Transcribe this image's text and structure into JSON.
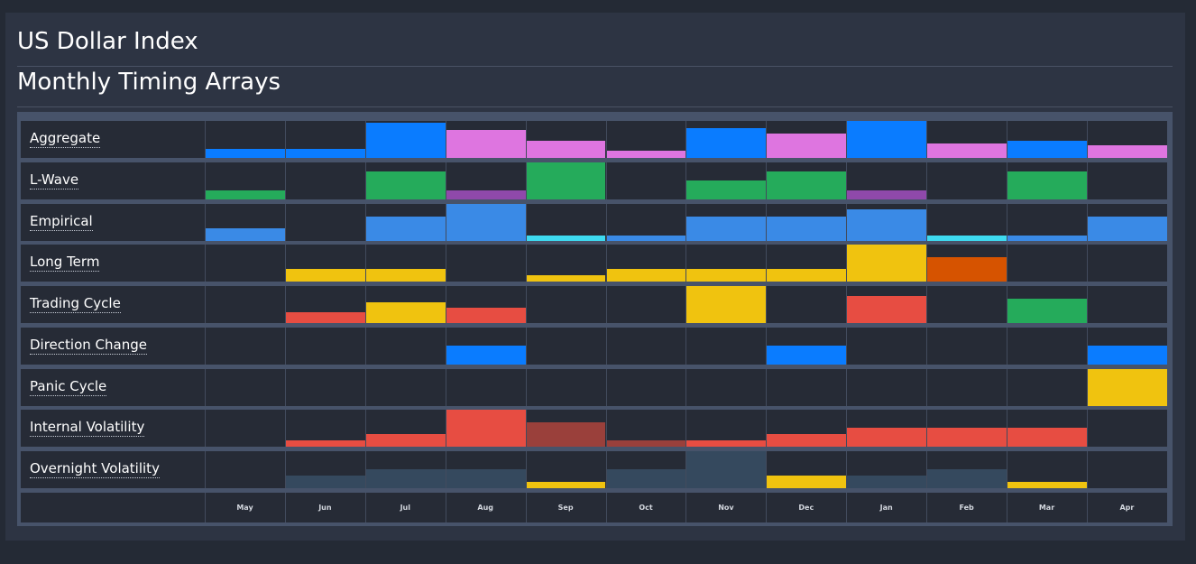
{
  "title": "US Dollar Index",
  "subtitle": "Monthly Timing Arrays",
  "colors": {
    "blue": "#0a7cff",
    "pink": "#de75e0",
    "green": "#25ab5b",
    "purple": "#8f49aa",
    "lightblue": "#3a8ae6",
    "cyan": "#3edaf0",
    "yellow": "#f0c30f",
    "orange": "#d65300",
    "red": "#e74d42",
    "darkred": "#9a403b",
    "slate": "#35495e"
  },
  "chart_data": {
    "type": "heatmap",
    "title": "Monthly Timing Arrays",
    "categories": [
      "May",
      "Jun",
      "Jul",
      "Aug",
      "Sep",
      "Oct",
      "Nov",
      "Dec",
      "Jan",
      "Feb",
      "Mar",
      "Apr"
    ],
    "value_scale": "bar height as fraction of row height (0–1)",
    "series": [
      {
        "name": "Aggregate",
        "values": [
          0.25,
          0.25,
          0.95,
          0.75,
          0.47,
          0.2,
          0.8,
          0.67,
          1.0,
          0.4,
          0.47,
          0.33
        ],
        "colors": [
          "blue",
          "blue",
          "blue",
          "pink",
          "pink",
          "pink",
          "blue",
          "pink",
          "blue",
          "pink",
          "blue",
          "pink"
        ]
      },
      {
        "name": "L-Wave",
        "values": [
          0.25,
          0,
          0.75,
          0.25,
          1.0,
          0,
          0.5,
          0.75,
          0.25,
          0,
          0.75,
          0
        ],
        "colors": [
          "green",
          "green",
          "green",
          "purple",
          "green",
          "green",
          "green",
          "green",
          "purple",
          "green",
          "green",
          "green"
        ]
      },
      {
        "name": "Empirical",
        "values": [
          0.35,
          0,
          0.67,
          1.0,
          0.15,
          0.15,
          0.67,
          0.67,
          0.85,
          0.15,
          0.15,
          0.67
        ],
        "colors": [
          "lightblue",
          "lightblue",
          "lightblue",
          "lightblue",
          "cyan",
          "lightblue",
          "lightblue",
          "lightblue",
          "lightblue",
          "cyan",
          "lightblue",
          "lightblue"
        ]
      },
      {
        "name": "Long Term",
        "values": [
          0,
          0.35,
          0.35,
          0,
          0.17,
          0.35,
          0.35,
          0.35,
          1.0,
          0.67,
          0,
          0
        ],
        "colors": [
          "yellow",
          "yellow",
          "yellow",
          "yellow",
          "yellow",
          "yellow",
          "yellow",
          "yellow",
          "yellow",
          "orange",
          "yellow",
          "yellow"
        ]
      },
      {
        "name": "Trading Cycle",
        "values": [
          0,
          0.3,
          0.55,
          0.42,
          0,
          0,
          1.0,
          0,
          0.72,
          0,
          0.67,
          0
        ],
        "colors": [
          "red",
          "red",
          "yellow",
          "red",
          "red",
          "red",
          "yellow",
          "red",
          "red",
          "red",
          "green",
          "red"
        ]
      },
      {
        "name": "Direction Change",
        "values": [
          0,
          0,
          0,
          0.5,
          0,
          0,
          0,
          0.5,
          0,
          0,
          0,
          0.5
        ],
        "colors": [
          "blue",
          "blue",
          "blue",
          "blue",
          "blue",
          "blue",
          "blue",
          "blue",
          "blue",
          "blue",
          "blue",
          "blue"
        ]
      },
      {
        "name": "Panic Cycle",
        "values": [
          0,
          0,
          0,
          0,
          0,
          0,
          0,
          0,
          0,
          0,
          0,
          1.0
        ],
        "colors": [
          "yellow",
          "yellow",
          "yellow",
          "yellow",
          "yellow",
          "yellow",
          "yellow",
          "yellow",
          "yellow",
          "yellow",
          "yellow",
          "yellow"
        ]
      },
      {
        "name": "Internal Volatility",
        "values": [
          0,
          0.17,
          0.35,
          1.0,
          0.67,
          0.17,
          0.17,
          0.35,
          0.5,
          0.5,
          0.5,
          0
        ],
        "colors": [
          "red",
          "red",
          "red",
          "red",
          "darkred",
          "darkred",
          "red",
          "red",
          "red",
          "red",
          "red",
          "red"
        ]
      },
      {
        "name": "Overnight Volatility",
        "values": [
          0,
          0.35,
          0.5,
          0.5,
          0.17,
          0.5,
          1.0,
          0.35,
          0.35,
          0.5,
          0.17,
          0
        ],
        "colors": [
          "slate",
          "slate",
          "slate",
          "slate",
          "yellow",
          "slate",
          "slate",
          "yellow",
          "slate",
          "slate",
          "yellow",
          "slate"
        ]
      }
    ],
    "grid": true,
    "legend": "none"
  }
}
